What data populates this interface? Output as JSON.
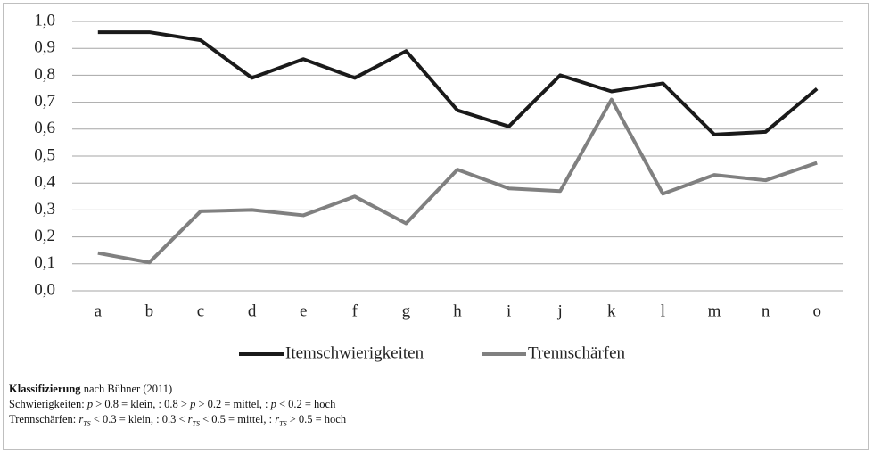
{
  "chart_data": {
    "type": "line",
    "categories": [
      "a",
      "b",
      "c",
      "d",
      "e",
      "f",
      "g",
      "h",
      "i",
      "j",
      "k",
      "l",
      "m",
      "n",
      "o"
    ],
    "series": [
      {
        "name": "Itemschwierigkeiten",
        "color": "#1a1a1a",
        "values": [
          0.96,
          0.96,
          0.93,
          0.79,
          0.86,
          0.79,
          0.89,
          0.67,
          0.61,
          0.8,
          0.74,
          0.77,
          0.58,
          0.59,
          0.75
        ]
      },
      {
        "name": "Trennschärfen",
        "color": "#808080",
        "values": [
          0.14,
          0.105,
          0.295,
          0.3,
          0.28,
          0.35,
          0.25,
          0.45,
          0.38,
          0.37,
          0.71,
          0.36,
          0.43,
          0.41,
          0.475
        ]
      }
    ],
    "ylim": [
      0,
      1
    ],
    "yticks": [
      {
        "value": 0,
        "label": "0,0"
      },
      {
        "value": 0.1,
        "label": "0,1"
      },
      {
        "value": 0.2,
        "label": "0,2"
      },
      {
        "value": 0.3,
        "label": "0,3"
      },
      {
        "value": 0.4,
        "label": "0,4"
      },
      {
        "value": 0.5,
        "label": "0,5"
      },
      {
        "value": 0.6,
        "label": "0,6"
      },
      {
        "value": 0.7,
        "label": "0,7"
      },
      {
        "value": 0.8,
        "label": "0,8"
      },
      {
        "value": 0.9,
        "label": "0,9"
      },
      {
        "value": 1,
        "label": "1,0"
      }
    ],
    "grid": true,
    "legend": "bottom"
  },
  "footnote": {
    "title_bold": "Klassifizierung",
    "title_rest": " nach Bühner (2011)",
    "lines": [
      [
        {
          "text": "Schwierigkeiten: "
        },
        {
          "text": "p",
          "italic": true
        },
        {
          "text": " > 0.8 = klein, : 0.8 > "
        },
        {
          "text": "p",
          "italic": true
        },
        {
          "text": " > 0.2 = mittel, : "
        },
        {
          "text": "p",
          "italic": true
        },
        {
          "text": " < 0.2 = hoch"
        }
      ],
      [
        {
          "text": "Trennschärfen: "
        },
        {
          "text": "r",
          "italic": true
        },
        {
          "text": "TS",
          "italic": true,
          "sub": true
        },
        {
          "text": " < 0.3 = klein, : 0.3 < "
        },
        {
          "text": "r",
          "italic": true
        },
        {
          "text": "TS",
          "italic": true,
          "sub": true
        },
        {
          "text": " < 0.5 = mittel, : "
        },
        {
          "text": "r",
          "italic": true
        },
        {
          "text": "TS",
          "italic": true,
          "sub": true
        },
        {
          "text": " > 0.5 = hoch"
        }
      ]
    ]
  }
}
